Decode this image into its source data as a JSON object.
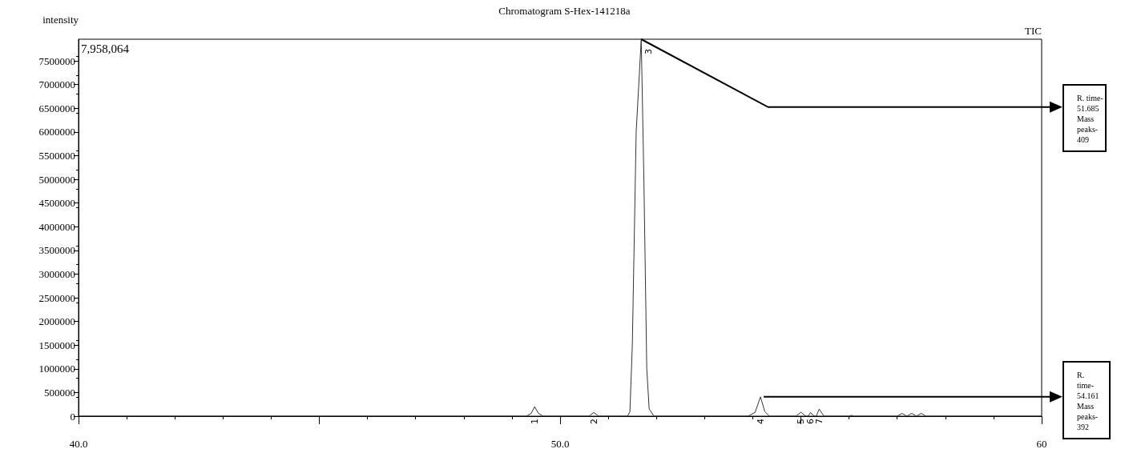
{
  "chart_data": {
    "type": "line",
    "title": "Chromatogram S-Hex-141218a",
    "ylabel": "intensity",
    "x": [
      40,
      49.3,
      49.4,
      49.47,
      49.55,
      49.65,
      50.6,
      50.7,
      50.8,
      51.4,
      51.45,
      51.5,
      51.58,
      51.685,
      51.74,
      51.8,
      51.85,
      51.95,
      53.9,
      54.05,
      54.161,
      54.25,
      54.35,
      54.9,
      55.0,
      55.1,
      55.15,
      55.2,
      55.28,
      55.32,
      55.38,
      55.48,
      56.0,
      56.05,
      56.1,
      57.0,
      57.1,
      57.2,
      57.3,
      57.4,
      57.5,
      57.6,
      60
    ],
    "values": [
      0,
      0,
      60000,
      200000,
      60000,
      0,
      0,
      80000,
      0,
      0,
      100000,
      1500000,
      6000000,
      7958064,
      5000000,
      1000000,
      150000,
      0,
      0,
      80000,
      408000,
      100000,
      0,
      0,
      85000,
      0,
      0,
      75000,
      0,
      0,
      150000,
      0,
      0,
      20000,
      0,
      0,
      60000,
      0,
      60000,
      0,
      60000,
      0,
      0
    ],
    "color": "#333333",
    "marker": "none",
    "line_style": "solid",
    "grid": false,
    "xlim": [
      40,
      60
    ],
    "xticks": [
      {
        "value": 40,
        "label": "40.0"
      },
      {
        "value": 45,
        "label": null
      },
      {
        "value": 50,
        "label": "50.0"
      },
      {
        "value": 55,
        "label": null
      },
      60
    ],
    "ylim": [
      0,
      7958064
    ],
    "yticks": [
      0,
      500000,
      1000000,
      1500000,
      2000000,
      2500000,
      3000000,
      3500000,
      4000000,
      4500000,
      5000000,
      5500000,
      6000000,
      6500000,
      7000000,
      7500000
    ],
    "annotations": [
      "TIC",
      "7,958,064",
      {
        "text": "1",
        "x": 49.47,
        "y": 200000
      },
      {
        "text": "2",
        "x": 50.7,
        "y": 80000
      },
      {
        "text": "3",
        "x": 51.685,
        "y": 7958064
      },
      {
        "text": "4",
        "x": 54.161,
        "y": 408000
      },
      {
        "text": "5",
        "x": 55.0,
        "y": 85000
      },
      {
        "text": "6",
        "x": 55.2,
        "y": 75000
      },
      {
        "text": "7",
        "x": 55.38,
        "y": 150000
      },
      "R. time-\n51.685\nMass\npeaks-\n409",
      "R.\ntime-\n54.161\nMass\npeaks-\n392"
    ]
  }
}
